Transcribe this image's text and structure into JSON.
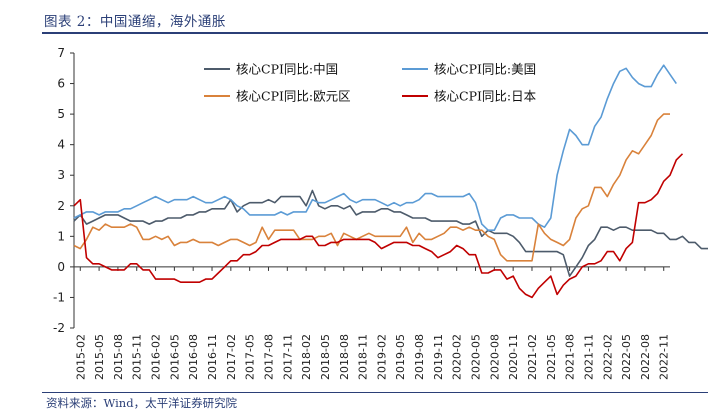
{
  "title": "图表 2：中国通缩，海外通胀",
  "source": "资料来源：Wind，太平洋证券研究院",
  "chart_data": {
    "type": "line",
    "title": "",
    "xlabel": "",
    "ylabel": "",
    "ylim": [
      -2,
      7
    ],
    "yticks": [
      -2,
      -1,
      0,
      1,
      2,
      3,
      4,
      5,
      6,
      7
    ],
    "x_start": "2015-01",
    "tick_labels": [
      "2015-02",
      "2015-05",
      "2015-08",
      "2015-11",
      "2016-02",
      "2016-05",
      "2016-08",
      "2016-11",
      "2017-02",
      "2017-05",
      "2017-08",
      "2017-11",
      "2018-02",
      "2018-05",
      "2018-08",
      "2018-11",
      "2019-02",
      "2019-05",
      "2019-08",
      "2019-11",
      "2020-02",
      "2020-05",
      "2020-08",
      "2020-11",
      "2021-02",
      "2021-05",
      "2021-08",
      "2021-11",
      "2022-02",
      "2022-05",
      "2022-08",
      "2022-11"
    ],
    "legend_position": "top-center",
    "series": [
      {
        "name": "核心CPI同比:中国",
        "color": "#4d5b6b",
        "values": [
          1.5,
          1.7,
          1.4,
          1.5,
          1.6,
          1.7,
          1.7,
          1.7,
          1.6,
          1.5,
          1.5,
          1.5,
          1.4,
          1.5,
          1.5,
          1.6,
          1.6,
          1.6,
          1.7,
          1.7,
          1.8,
          1.8,
          1.9,
          1.9,
          1.9,
          2.2,
          1.8,
          2.0,
          2.1,
          2.1,
          2.1,
          2.2,
          2.1,
          2.3,
          2.3,
          2.3,
          2.3,
          2.0,
          2.5,
          2.0,
          1.9,
          2.0,
          2.0,
          1.9,
          2.0,
          1.7,
          1.8,
          1.8,
          1.8,
          1.9,
          1.9,
          1.8,
          1.8,
          1.7,
          1.6,
          1.6,
          1.6,
          1.5,
          1.5,
          1.5,
          1.5,
          1.5,
          1.4,
          1.4,
          1.5,
          1.0,
          1.2,
          1.1,
          1.1,
          1.1,
          1.0,
          0.8,
          0.5,
          0.5,
          0.5,
          0.5,
          0.5,
          0.5,
          0.4,
          -0.3,
          0.0,
          0.3,
          0.7,
          0.9,
          1.3,
          1.3,
          1.2,
          1.3,
          1.3,
          1.2,
          1.2,
          1.2,
          1.2,
          1.1,
          1.1,
          0.9,
          0.9,
          1.0,
          0.8,
          0.8,
          0.6,
          0.6,
          0.6
        ]
      },
      {
        "name": "核心CPI同比:美国",
        "color": "#5b9bd5",
        "values": [
          1.6,
          1.7,
          1.8,
          1.8,
          1.7,
          1.8,
          1.8,
          1.8,
          1.9,
          1.9,
          2.0,
          2.1,
          2.2,
          2.3,
          2.2,
          2.1,
          2.2,
          2.2,
          2.2,
          2.3,
          2.2,
          2.1,
          2.1,
          2.2,
          2.3,
          2.2,
          2.0,
          1.9,
          1.7,
          1.7,
          1.7,
          1.7,
          1.7,
          1.8,
          1.7,
          1.8,
          1.8,
          1.8,
          2.2,
          2.1,
          2.1,
          2.2,
          2.3,
          2.4,
          2.2,
          2.1,
          2.2,
          2.2,
          2.2,
          2.1,
          2.0,
          2.1,
          2.0,
          2.1,
          2.1,
          2.2,
          2.4,
          2.4,
          2.3,
          2.3,
          2.3,
          2.3,
          2.3,
          2.4,
          2.1,
          1.4,
          1.2,
          1.2,
          1.6,
          1.7,
          1.7,
          1.6,
          1.6,
          1.6,
          1.4,
          1.3,
          1.6,
          3.0,
          3.8,
          4.5,
          4.3,
          4.0,
          4.0,
          4.6,
          4.9,
          5.5,
          6.0,
          6.4,
          6.5,
          6.2,
          6.0,
          5.9,
          5.9,
          6.3,
          6.6,
          6.3,
          6.0
        ]
      },
      {
        "name": "核心CPI同比:欧元区",
        "color": "#d9823b",
        "values": [
          0.7,
          0.6,
          0.9,
          1.3,
          1.2,
          1.4,
          1.3,
          1.3,
          1.3,
          1.4,
          1.3,
          0.9,
          0.9,
          1.0,
          0.9,
          1.0,
          0.7,
          0.8,
          0.8,
          0.9,
          0.8,
          0.8,
          0.8,
          0.7,
          0.8,
          0.9,
          0.9,
          0.8,
          0.7,
          0.8,
          1.3,
          0.9,
          1.2,
          1.2,
          1.2,
          1.2,
          0.9,
          0.9,
          0.9,
          1.0,
          1.0,
          1.1,
          0.7,
          1.1,
          1.0,
          0.9,
          1.0,
          1.1,
          1.0,
          1.0,
          1.0,
          1.0,
          1.0,
          1.3,
          0.8,
          1.1,
          0.9,
          0.9,
          1.0,
          1.1,
          1.3,
          1.3,
          1.2,
          1.3,
          1.2,
          1.2,
          1.0,
          0.9,
          0.4,
          0.2,
          0.2,
          0.2,
          0.2,
          0.2,
          1.4,
          1.1,
          0.9,
          0.8,
          0.7,
          0.9,
          1.6,
          1.9,
          2.0,
          2.6,
          2.6,
          2.3,
          2.7,
          3.0,
          3.5,
          3.8,
          3.7,
          4.0,
          4.3,
          4.8,
          5.0,
          5.0
        ]
      },
      {
        "name": "核心CPI同比:日本",
        "color": "#c00000",
        "values": [
          2.0,
          2.2,
          0.3,
          0.1,
          0.1,
          0.0,
          -0.1,
          -0.1,
          -0.1,
          0.1,
          0.1,
          -0.1,
          -0.1,
          -0.4,
          -0.4,
          -0.4,
          -0.4,
          -0.5,
          -0.5,
          -0.5,
          -0.5,
          -0.4,
          -0.4,
          -0.2,
          0.0,
          0.2,
          0.2,
          0.4,
          0.4,
          0.5,
          0.7,
          0.7,
          0.8,
          0.9,
          0.9,
          0.9,
          0.9,
          1.0,
          1.0,
          0.7,
          0.7,
          0.8,
          0.8,
          0.9,
          0.9,
          0.9,
          0.9,
          0.9,
          0.8,
          0.6,
          0.7,
          0.8,
          0.8,
          0.8,
          0.7,
          0.7,
          0.6,
          0.5,
          0.3,
          0.4,
          0.5,
          0.7,
          0.6,
          0.4,
          0.4,
          -0.2,
          -0.2,
          -0.1,
          -0.1,
          -0.4,
          -0.3,
          -0.7,
          -0.9,
          -1.0,
          -0.7,
          -0.5,
          -0.3,
          -0.9,
          -0.6,
          -0.4,
          -0.3,
          0.0,
          0.1,
          0.1,
          0.2,
          0.5,
          0.5,
          0.2,
          0.6,
          0.8,
          2.1,
          2.1,
          2.2,
          2.4,
          2.8,
          3.0,
          3.5,
          3.7
        ]
      }
    ]
  }
}
